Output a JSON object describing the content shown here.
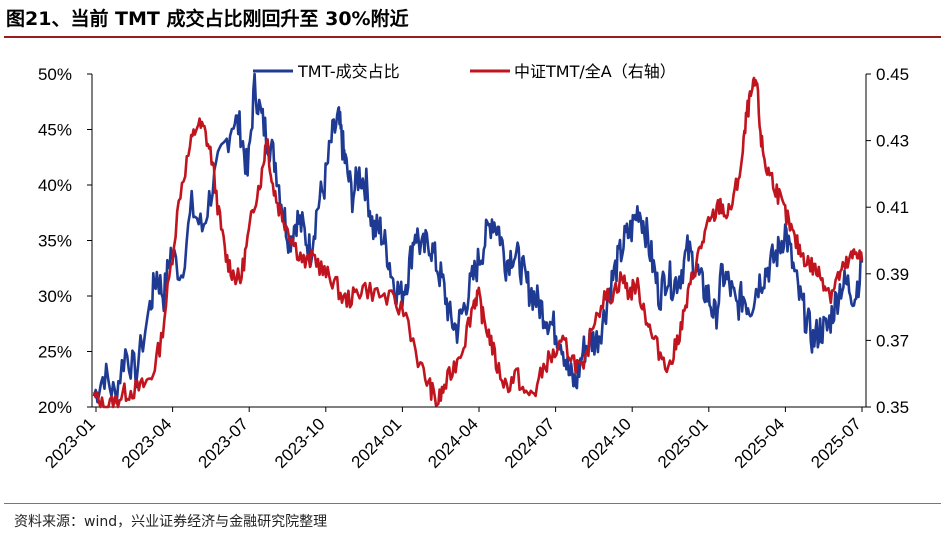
{
  "header": {
    "title": "图21、当前 TMT 成交占比刚回升至 30%附近"
  },
  "footer": {
    "source": "资料来源：wind，兴业证券经济与金融研究院整理"
  },
  "chart_data": {
    "type": "line",
    "title": "当前 TMT 成交占比刚回升至 30%附近",
    "x": [
      "2023-01",
      "2023-04",
      "2023-07",
      "2023-10",
      "2024-01",
      "2024-04",
      "2024-07",
      "2024-10",
      "2025-01",
      "2025-04",
      "2025-07"
    ],
    "x_tick_labels": [
      "2023-01",
      "2023-04",
      "2023-07",
      "2023-10",
      "2024-01",
      "2024-04",
      "2024-07",
      "2024-10",
      "2025-01",
      "2025-04",
      "2025-07"
    ],
    "left_axis": {
      "ylim": [
        20,
        50
      ],
      "ticks": [
        20,
        25,
        30,
        35,
        40,
        45,
        50
      ],
      "tick_labels": [
        "20%",
        "25%",
        "30%",
        "35%",
        "40%",
        "45%",
        "50%"
      ]
    },
    "right_axis": {
      "ylim": [
        0.35,
        0.45
      ],
      "ticks": [
        0.35,
        0.37,
        0.39,
        0.41,
        0.43,
        0.45
      ],
      "tick_labels": [
        "0.35",
        "0.37",
        "0.39",
        "0.41",
        "0.43",
        "0.45"
      ]
    },
    "legend_position": "top",
    "series": [
      {
        "name": "TMT-成交占比",
        "axis": "left",
        "color": "#1f3a93",
        "values": [
          [
            0,
            21
          ],
          [
            0.15,
            23
          ],
          [
            0.3,
            21
          ],
          [
            0.45,
            25
          ],
          [
            0.6,
            23
          ],
          [
            0.8,
            29
          ],
          [
            0.9,
            32
          ],
          [
            1,
            30
          ],
          [
            1.1,
            34
          ],
          [
            1.25,
            32
          ],
          [
            1.4,
            38
          ],
          [
            1.55,
            36
          ],
          [
            1.7,
            40
          ],
          [
            1.85,
            43
          ],
          [
            2,
            46
          ],
          [
            2.1,
            45
          ],
          [
            2.2,
            41
          ],
          [
            2.3,
            49
          ],
          [
            2.4,
            46
          ],
          [
            2.5,
            44
          ],
          [
            2.6,
            42
          ],
          [
            2.7,
            38
          ],
          [
            2.8,
            35
          ],
          [
            2.9,
            37
          ],
          [
            3,
            36
          ],
          [
            3.1,
            34
          ],
          [
            3.2,
            38
          ],
          [
            3.3,
            40
          ],
          [
            3.4,
            44
          ],
          [
            3.5,
            46
          ],
          [
            3.55,
            44
          ],
          [
            3.6,
            42
          ],
          [
            3.7,
            39
          ],
          [
            3.8,
            41
          ],
          [
            3.9,
            40
          ],
          [
            4,
            36
          ],
          [
            4.1,
            36
          ],
          [
            4.2,
            34
          ],
          [
            4.3,
            31
          ],
          [
            4.4,
            30
          ],
          [
            4.5,
            32
          ],
          [
            4.6,
            36
          ],
          [
            4.7,
            34
          ],
          [
            4.8,
            35
          ],
          [
            4.9,
            33
          ],
          [
            5,
            31
          ],
          [
            5.1,
            28
          ],
          [
            5.2,
            27
          ],
          [
            5.3,
            29
          ],
          [
            5.4,
            31
          ],
          [
            5.5,
            33
          ],
          [
            5.6,
            35
          ],
          [
            5.7,
            37
          ],
          [
            5.8,
            36
          ],
          [
            5.9,
            33
          ],
          [
            6,
            34
          ],
          [
            6.1,
            33
          ],
          [
            6.2,
            31
          ],
          [
            6.3,
            30
          ],
          [
            6.4,
            29
          ],
          [
            6.5,
            28
          ],
          [
            6.6,
            27
          ],
          [
            6.7,
            26
          ],
          [
            6.8,
            23
          ],
          [
            6.9,
            22
          ],
          [
            7,
            25
          ],
          [
            7.1,
            26
          ],
          [
            7.2,
            26
          ],
          [
            7.3,
            28
          ],
          [
            7.4,
            31
          ],
          [
            7.5,
            33
          ],
          [
            7.6,
            35
          ],
          [
            7.7,
            36
          ],
          [
            7.8,
            38
          ],
          [
            7.9,
            36
          ],
          [
            8,
            33
          ],
          [
            8.1,
            30
          ],
          [
            8.2,
            32
          ],
          [
            8.3,
            31
          ],
          [
            8.4,
            32
          ],
          [
            8.5,
            34
          ],
          [
            8.6,
            33
          ],
          [
            8.7,
            31
          ],
          [
            8.8,
            30
          ],
          [
            8.9,
            28
          ],
          [
            9,
            32
          ],
          [
            9.1,
            31
          ],
          [
            9.2,
            29
          ],
          [
            9.3,
            30
          ],
          [
            9.4,
            29
          ],
          [
            9.5,
            31
          ],
          [
            9.6,
            32
          ],
          [
            9.7,
            33
          ],
          [
            9.8,
            34
          ],
          [
            9.9,
            36
          ],
          [
            10,
            33
          ],
          [
            10.1,
            30
          ],
          [
            10.2,
            28
          ],
          [
            10.3,
            26
          ],
          [
            10.4,
            27
          ],
          [
            10.5,
            27
          ],
          [
            10.6,
            29
          ],
          [
            10.7,
            31
          ],
          [
            10.8,
            31
          ],
          [
            10.9,
            30
          ],
          [
            11,
            33
          ]
        ]
      },
      {
        "name": "中证TMT/全A（右轴）",
        "axis": "right",
        "color": "#c0151f",
        "values": [
          [
            0,
            0.353
          ],
          [
            0.2,
            0.35
          ],
          [
            0.4,
            0.351
          ],
          [
            0.6,
            0.354
          ],
          [
            0.8,
            0.355
          ],
          [
            1,
            0.356
          ],
          [
            1.2,
            0.359
          ],
          [
            1.4,
            0.37
          ],
          [
            1.6,
            0.392
          ],
          [
            1.8,
            0.415
          ],
          [
            2,
            0.428
          ],
          [
            2.15,
            0.435
          ],
          [
            2.3,
            0.433
          ],
          [
            2.45,
            0.425
          ],
          [
            2.6,
            0.408
          ],
          [
            2.75,
            0.395
          ],
          [
            2.9,
            0.39
          ],
          [
            3.05,
            0.388
          ],
          [
            3.2,
            0.4
          ],
          [
            3.35,
            0.412
          ],
          [
            3.5,
            0.42
          ],
          [
            3.6,
            0.432
          ],
          [
            3.7,
            0.418
          ],
          [
            3.85,
            0.41
          ],
          [
            4,
            0.405
          ],
          [
            4.2,
            0.398
          ],
          [
            4.4,
            0.393
          ],
          [
            4.6,
            0.395
          ],
          [
            4.8,
            0.39
          ],
          [
            5,
            0.388
          ],
          [
            5.2,
            0.382
          ],
          [
            5.4,
            0.383
          ],
          [
            5.6,
            0.386
          ],
          [
            5.9,
            0.384
          ],
          [
            6.2,
            0.382
          ],
          [
            6.5,
            0.378
          ],
          [
            6.8,
            0.362
          ],
          [
            7,
            0.356
          ],
          [
            7.15,
            0.351
          ],
          [
            7.3,
            0.356
          ],
          [
            7.5,
            0.362
          ],
          [
            7.7,
            0.369
          ],
          [
            7.9,
            0.381
          ],
          [
            8,
            0.384
          ],
          [
            8.1,
            0.377
          ],
          [
            8.25,
            0.371
          ],
          [
            8.4,
            0.362
          ],
          [
            8.6,
            0.356
          ],
          [
            8.8,
            0.36
          ],
          [
            9,
            0.353
          ],
          [
            9.2,
            0.355
          ],
          [
            9.4,
            0.363
          ],
          [
            9.6,
            0.366
          ],
          [
            9.8,
            0.369
          ],
          [
            10,
            0.364
          ],
          [
            10.2,
            0.36
          ],
          [
            10.4,
            0.376
          ],
          [
            10.6,
            0.382
          ],
          [
            10.8,
            0.384
          ],
          [
            11,
            0.389
          ],
          [
            11.15,
            0.384
          ],
          [
            11.3,
            0.387
          ],
          [
            11.45,
            0.38
          ],
          [
            11.6,
            0.372
          ],
          [
            11.8,
            0.366
          ],
          [
            12,
            0.362
          ],
          [
            12.15,
            0.37
          ],
          [
            12.3,
            0.378
          ],
          [
            12.45,
            0.388
          ],
          [
            12.6,
            0.396
          ],
          [
            12.75,
            0.403
          ],
          [
            12.9,
            0.407
          ],
          [
            13.05,
            0.411
          ],
          [
            13.2,
            0.407
          ],
          [
            13.35,
            0.414
          ],
          [
            13.5,
            0.424
          ],
          [
            13.6,
            0.438
          ],
          [
            13.7,
            0.444
          ],
          [
            13.8,
            0.448
          ],
          [
            13.9,
            0.43
          ],
          [
            14,
            0.422
          ],
          [
            14.15,
            0.418
          ],
          [
            14.3,
            0.412
          ],
          [
            14.45,
            0.406
          ],
          [
            14.6,
            0.4
          ],
          [
            14.75,
            0.396
          ],
          [
            14.9,
            0.393
          ],
          [
            15.05,
            0.391
          ],
          [
            15.2,
            0.388
          ],
          [
            15.35,
            0.384
          ],
          [
            15.5,
            0.389
          ],
          [
            15.65,
            0.392
          ],
          [
            15.8,
            0.395
          ],
          [
            15.9,
            0.397
          ],
          [
            16,
            0.394
          ]
        ]
      }
    ],
    "x_max": 16,
    "note": "blue series x spans quarters 0..11 mapped onto 0..16 scale (the chart x range covers 2023-01 to ~2025-07)"
  }
}
